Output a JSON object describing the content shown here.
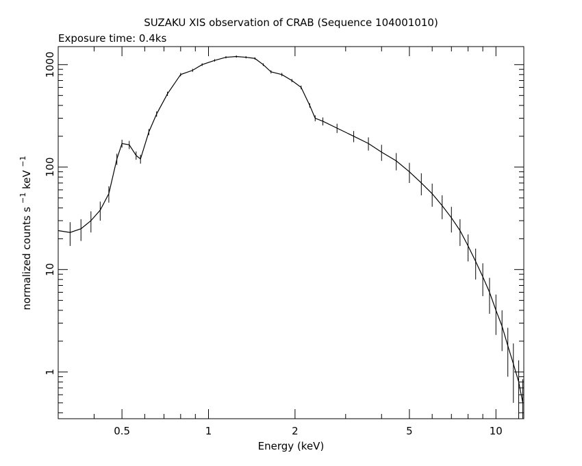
{
  "chart_data": {
    "type": "line",
    "title": "SUZAKU XIS observation of CRAB (Sequence 104001010)",
    "subtitle": "Exposure time: 0.4ks",
    "xlabel": "Energy (keV)",
    "ylabel": "normalized counts s",
    "ylabel_sup1": "−1",
    "ylabel_mid": " keV",
    "ylabel_sup2": "−1",
    "xscale": "log",
    "yscale": "log",
    "xlim": [
      0.3,
      12.5
    ],
    "ylim": [
      0.35,
      1500
    ],
    "grid": false,
    "x_ticks": [
      {
        "value": 0.5,
        "label": "0.5"
      },
      {
        "value": 1,
        "label": "1"
      },
      {
        "value": 2,
        "label": "2"
      },
      {
        "value": 5,
        "label": "5"
      },
      {
        "value": 10,
        "label": "10"
      }
    ],
    "y_ticks": [
      {
        "value": 1,
        "label": "1"
      },
      {
        "value": 10,
        "label": "10"
      },
      {
        "value": 100,
        "label": "100"
      },
      {
        "value": 1000,
        "label": "1000"
      }
    ],
    "series": [
      {
        "color": "#000000",
        "x": [
          0.3,
          0.33,
          0.36,
          0.39,
          0.42,
          0.45,
          0.48,
          0.5,
          0.53,
          0.56,
          0.58,
          0.62,
          0.66,
          0.72,
          0.8,
          0.88,
          0.95,
          1.05,
          1.15,
          1.25,
          1.35,
          1.45,
          1.55,
          1.65,
          1.8,
          1.95,
          2.1,
          2.25,
          2.35,
          2.5,
          2.8,
          3.2,
          3.6,
          4.0,
          4.5,
          5.0,
          5.5,
          6.0,
          6.5,
          7.0,
          7.5,
          8.0,
          8.5,
          9.0,
          9.5,
          10.0,
          10.5,
          11.0,
          11.5,
          12.0,
          12.4
        ],
        "y": [
          24,
          23,
          25,
          30,
          38,
          55,
          120,
          170,
          165,
          130,
          120,
          220,
          330,
          520,
          800,
          880,
          1000,
          1100,
          1180,
          1200,
          1180,
          1150,
          1000,
          850,
          800,
          700,
          600,
          400,
          300,
          280,
          240,
          200,
          170,
          140,
          115,
          90,
          70,
          55,
          42,
          32,
          24,
          17,
          12,
          8.5,
          6,
          4,
          2.8,
          1.8,
          1.2,
          0.8,
          0.5
        ],
        "err": [
          6,
          6,
          6,
          7,
          8,
          10,
          15,
          15,
          15,
          12,
          12,
          15,
          20,
          25,
          30,
          30,
          30,
          30,
          30,
          30,
          30,
          30,
          30,
          30,
          30,
          25,
          25,
          20,
          20,
          25,
          25,
          25,
          25,
          25,
          22,
          20,
          17,
          14,
          11,
          9,
          7,
          5,
          4,
          3,
          2.3,
          1.7,
          1.2,
          0.9,
          0.7,
          0.5,
          0.35
        ]
      }
    ]
  }
}
